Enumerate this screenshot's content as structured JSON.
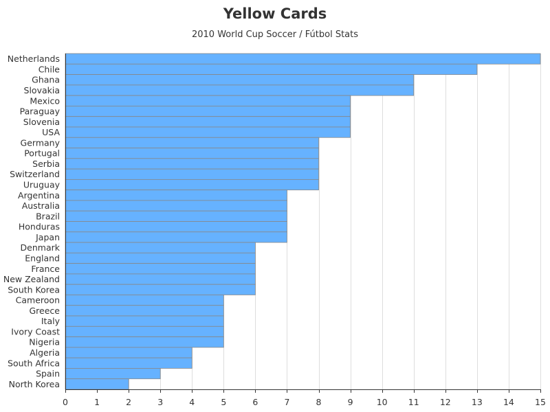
{
  "chart_data": {
    "type": "bar",
    "orientation": "horizontal",
    "title": "Yellow Cards",
    "subtitle": "2010 World Cup Soccer / Fútbol Stats",
    "xlabel": "",
    "ylabel": "",
    "xlim": [
      0,
      15
    ],
    "x_ticks": [
      0,
      1,
      2,
      3,
      4,
      5,
      6,
      7,
      8,
      9,
      10,
      11,
      12,
      13,
      14,
      15
    ],
    "grid": "vertical",
    "categories": [
      "Netherlands",
      "Chile",
      "Ghana",
      "Slovakia",
      "Mexico",
      "Paraguay",
      "Slovenia",
      "USA",
      "Germany",
      "Portugal",
      "Serbia",
      "Switzerland",
      "Uruguay",
      "Argentina",
      "Australia",
      "Brazil",
      "Honduras",
      "Japan",
      "Denmark",
      "England",
      "France",
      "New Zealand",
      "South Korea",
      "Cameroon",
      "Greece",
      "Italy",
      "Ivory Coast",
      "Nigeria",
      "Algeria",
      "South Africa",
      "Spain",
      "North Korea"
    ],
    "values": [
      15,
      13,
      11,
      11,
      9,
      9,
      9,
      9,
      8,
      8,
      8,
      8,
      8,
      7,
      7,
      7,
      7,
      7,
      6,
      6,
      6,
      6,
      6,
      5,
      5,
      5,
      5,
      5,
      4,
      4,
      3,
      2
    ],
    "bar_color": "#66b2ff",
    "bar_outline_color": "#888888"
  }
}
